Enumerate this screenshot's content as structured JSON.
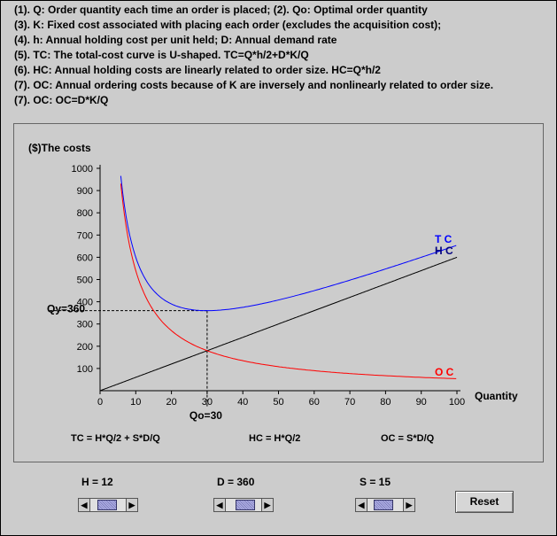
{
  "info_lines": [
    "(1). Q: Order quantity each time an order is placed;   (2). Qo: Optimal order quantity",
    "(3). K: Fixed cost associated with placing each order (excludes the acquisition cost);",
    "(4). h: Annual holding cost per unit held;  D: Annual demand rate",
    "(5). TC: The total-cost curve is U-shaped. TC=Q*h/2+D*K/Q",
    "(6). HC: Annual holding costs are linearly related to order size. HC=Q*h/2",
    "(7). OC: Annual ordering costs because of K are inversely and nonlinearly related to order size.",
    "(7). OC: OC=D*K/Q"
  ],
  "chart": {
    "y_title": "($)The costs",
    "x_title": "Quantity",
    "y_ticks": [
      "1000",
      "900",
      "800",
      "700",
      "600",
      "500",
      "400",
      "300",
      "200",
      "100"
    ],
    "x_ticks": [
      "0",
      "10",
      "20",
      "30",
      "40",
      "50",
      "60",
      "70",
      "80",
      "90",
      "100"
    ],
    "tc_label": "T C",
    "hc_label": "H C",
    "oc_label": "O C",
    "qy_label": "Qy=360",
    "qo_label": "Qo=30",
    "formula_tc": "TC = H*Q/2 + S*D/Q",
    "formula_hc": "HC = H*Q/2",
    "formula_oc": "OC = S*D/Q"
  },
  "chart_data": {
    "type": "line",
    "xlabel": "Quantity",
    "ylabel": "($)The costs",
    "xlim": [
      0,
      100
    ],
    "ylim": [
      0,
      1000
    ],
    "params": {
      "H": 12,
      "D": 360,
      "S": 15
    },
    "series": [
      {
        "name": "T C",
        "color": "#0000ff",
        "x": [
          6,
          8,
          10,
          15,
          20,
          25,
          30,
          40,
          50,
          60,
          70,
          80,
          90,
          100
        ],
        "values": [
          936,
          723,
          600,
          450,
          390,
          366,
          360,
          375,
          408,
          450,
          497,
          548,
          600,
          654
        ]
      },
      {
        "name": "H C",
        "color": "#000000",
        "x": [
          0,
          100
        ],
        "values": [
          0,
          600
        ]
      },
      {
        "name": "O C",
        "color": "#ff0000",
        "x": [
          6,
          8,
          10,
          15,
          20,
          25,
          30,
          40,
          50,
          60,
          70,
          80,
          90,
          100
        ],
        "values": [
          900,
          675,
          540,
          360,
          270,
          216,
          180,
          135,
          108,
          90,
          77,
          68,
          60,
          54
        ]
      }
    ],
    "annotations": [
      {
        "text": "Qy=360",
        "y": 360
      },
      {
        "text": "Qo=30",
        "x": 30
      }
    ]
  },
  "controls": {
    "h_label": "H = 12",
    "d_label": "D = 360",
    "s_label": "S = 15",
    "h_level": 0.45,
    "d_level": 0.58,
    "s_level": 0.4,
    "reset_label": "Reset"
  }
}
